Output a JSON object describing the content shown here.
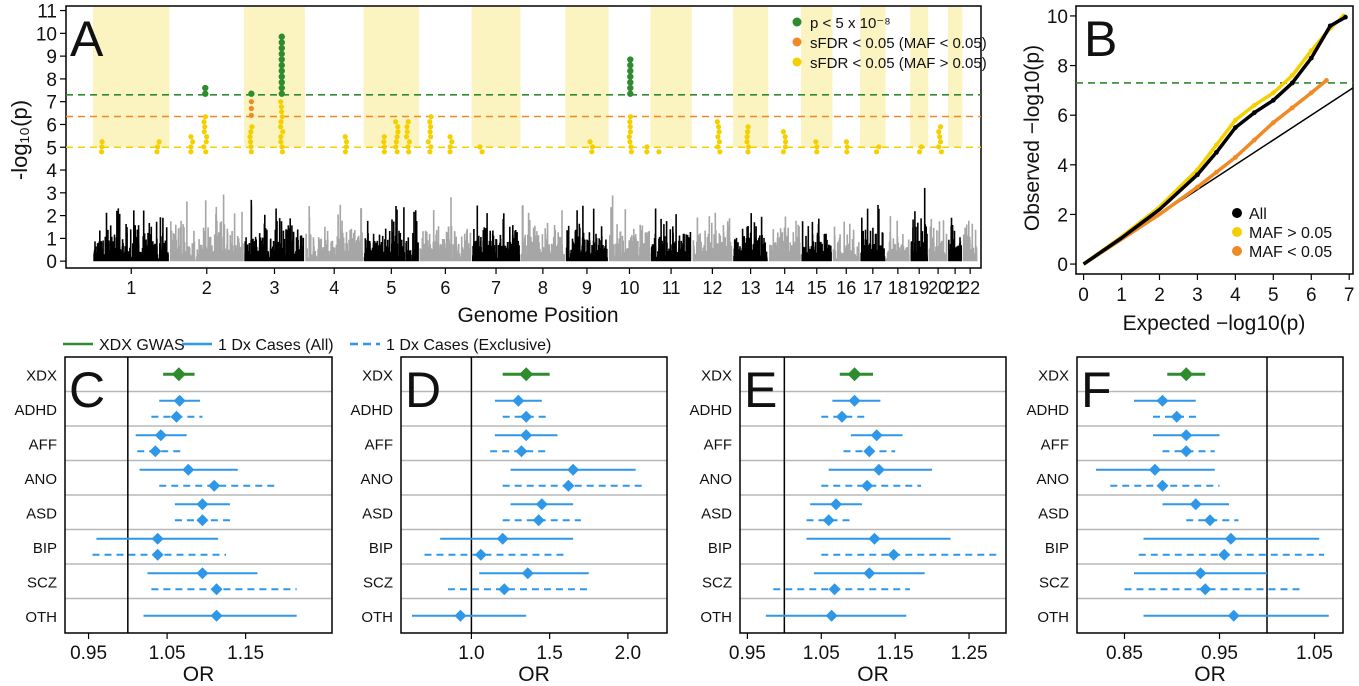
{
  "panels": {
    "a": {
      "letter": "A",
      "ylabel": "-log₁₀(p)",
      "xlabel": "Genome Position",
      "ylim": [
        -0.3,
        11.2
      ],
      "yticks": [
        "0",
        "1",
        "2",
        "3",
        "4",
        "5",
        "6",
        "7",
        "8",
        "9",
        "10",
        "11"
      ],
      "chromosomes": [
        "1",
        "2",
        "3",
        "4",
        "5",
        "6",
        "7",
        "8",
        "9",
        "10",
        "11",
        "12",
        "13",
        "14",
        "15",
        "16",
        "17",
        "18",
        "19",
        "20",
        "21",
        "22"
      ],
      "thresholds": [
        {
          "value": 7.3,
          "color": "#2e8b2e"
        },
        {
          "value": 6.35,
          "color": "#f08a24"
        },
        {
          "value": 5.0,
          "color": "#f5d000"
        }
      ],
      "legend": [
        {
          "label": "p < 5 x 10⁻⁸",
          "color": "#2e8b2e"
        },
        {
          "label": "sFDR < 0.05 (MAF < 0.05)",
          "color": "#f08a24"
        },
        {
          "label": "sFDR < 0.05 (MAF > 0.05)",
          "color": "#f5d000"
        }
      ],
      "colors": {
        "odd": "#000000",
        "even": "#a6a6a6",
        "shade": "#fbf3c0"
      },
      "peaks": [
        {
          "chrom": "2",
          "pos": 0.48,
          "max": 7.6
        },
        {
          "chrom": "3",
          "pos": 0.12,
          "max": 7.4
        },
        {
          "chrom": "3",
          "pos": 0.62,
          "max": 10.0
        },
        {
          "chrom": "10",
          "pos": 0.52,
          "max": 8.9
        }
      ]
    },
    "b": {
      "letter": "B",
      "xlabel": "Expected −log10(p)",
      "ylabel": "Observed −log10(p)",
      "xlim": [
        -0.2,
        7.1
      ],
      "ylim": [
        -0.4,
        10.4
      ],
      "xticks": [
        "0",
        "1",
        "2",
        "3",
        "4",
        "5",
        "6",
        "7"
      ],
      "yticks": [
        "0",
        "2",
        "4",
        "6",
        "8",
        "10"
      ],
      "gwas_line": 7.3,
      "legend": [
        {
          "label": "All",
          "color": "#000000"
        },
        {
          "label": "MAF > 0.05",
          "color": "#f5d000"
        },
        {
          "label": "MAF < 0.05",
          "color": "#f08a24"
        }
      ],
      "series": [
        {
          "name": "All",
          "color": "#000000",
          "x": [
            0,
            1,
            2,
            3,
            3.5,
            4,
            4.5,
            5,
            5.5,
            6,
            6.5,
            6.9
          ],
          "y": [
            0,
            1.05,
            2.2,
            3.6,
            4.5,
            5.5,
            6.1,
            6.6,
            7.3,
            8.3,
            9.6,
            9.95
          ]
        },
        {
          "name": "MAF > 0.05",
          "color": "#f5d000",
          "x": [
            0,
            1,
            2,
            3,
            3.5,
            4,
            4.5,
            5,
            5.5,
            6,
            6.5,
            6.85
          ],
          "y": [
            0,
            1.1,
            2.3,
            3.8,
            4.8,
            5.8,
            6.4,
            6.9,
            7.6,
            8.6,
            9.5,
            10.0
          ]
        },
        {
          "name": "MAF < 0.05",
          "color": "#f08a24",
          "x": [
            0,
            1,
            2,
            3,
            3.5,
            4,
            4.5,
            5,
            5.5,
            6,
            6.4
          ],
          "y": [
            0,
            1.0,
            2.0,
            3.1,
            3.7,
            4.3,
            5.0,
            5.7,
            6.3,
            6.9,
            7.4
          ]
        }
      ]
    },
    "forest_legend": [
      {
        "label": "XDX GWAS",
        "color": "#2e8b2e",
        "dash": false
      },
      {
        "label": "1 Dx Cases (All)",
        "color": "#2f97e8",
        "dash": false
      },
      {
        "label": "1 Dx Cases (Exclusive)",
        "color": "#2f97e8",
        "dash": true
      }
    ],
    "forest": [
      {
        "letter": "C",
        "xlabel": "OR",
        "xlim": [
          0.92,
          1.26
        ],
        "ref": 1.0,
        "xticks": [
          {
            "v": 0.95,
            "label": "0.95"
          },
          {
            "v": 1.05,
            "label": "1.05"
          },
          {
            "v": 1.15,
            "label": "1.15"
          }
        ],
        "rows": [
          {
            "label": "XDX",
            "xdx": [
              1.065,
              1.045,
              1.085
            ]
          },
          {
            "label": "ADHD",
            "all": [
              1.066,
              1.04,
              1.092
            ],
            "excl": [
              1.062,
              1.03,
              1.095
            ]
          },
          {
            "label": "AFF",
            "all": [
              1.042,
              1.01,
              1.075
            ],
            "excl": [
              1.035,
              1.012,
              1.07
            ]
          },
          {
            "label": "ANO",
            "all": [
              1.077,
              1.015,
              1.14
            ],
            "excl": [
              1.11,
              1.04,
              1.19
            ]
          },
          {
            "label": "ASD",
            "all": [
              1.095,
              1.06,
              1.13
            ],
            "excl": [
              1.095,
              1.06,
              1.135
            ]
          },
          {
            "label": "BIP",
            "all": [
              1.038,
              0.96,
              1.115
            ],
            "excl": [
              1.038,
              0.955,
              1.125
            ]
          },
          {
            "label": "SCZ",
            "all": [
              1.095,
              1.025,
              1.165
            ],
            "excl": [
              1.113,
              1.03,
              1.215
            ]
          },
          {
            "label": "OTH",
            "all": [
              1.113,
              1.02,
              1.215
            ]
          }
        ]
      },
      {
        "letter": "D",
        "xlabel": "OR",
        "xlim": [
          0.55,
          2.25
        ],
        "ref": 1.0,
        "xticks": [
          {
            "v": 1.0,
            "label": "1.0"
          },
          {
            "v": 1.5,
            "label": "1.5"
          },
          {
            "v": 2.0,
            "label": "2.0"
          }
        ],
        "rows": [
          {
            "label": "XDX",
            "xdx": [
              1.35,
              1.2,
              1.5
            ]
          },
          {
            "label": "ADHD",
            "all": [
              1.3,
              1.15,
              1.45
            ],
            "excl": [
              1.35,
              1.2,
              1.5
            ]
          },
          {
            "label": "AFF",
            "all": [
              1.35,
              1.15,
              1.55
            ],
            "excl": [
              1.32,
              1.12,
              1.5
            ]
          },
          {
            "label": "ANO",
            "all": [
              1.65,
              1.25,
              2.05
            ],
            "excl": [
              1.62,
              1.2,
              2.1
            ]
          },
          {
            "label": "ASD",
            "all": [
              1.45,
              1.25,
              1.65
            ],
            "excl": [
              1.43,
              1.2,
              1.7
            ]
          },
          {
            "label": "BIP",
            "all": [
              1.2,
              0.8,
              1.65
            ],
            "excl": [
              1.06,
              0.7,
              1.6
            ]
          },
          {
            "label": "SCZ",
            "all": [
              1.36,
              1.05,
              1.75
            ],
            "excl": [
              1.21,
              0.85,
              1.75
            ]
          },
          {
            "label": "OTH",
            "all": [
              0.93,
              0.62,
              1.35
            ]
          }
        ]
      },
      {
        "letter": "E",
        "xlabel": "OR",
        "xlim": [
          0.94,
          1.3
        ],
        "ref": 1.0,
        "xticks": [
          {
            "v": 0.95,
            "label": "0.95"
          },
          {
            "v": 1.05,
            "label": "1.05"
          },
          {
            "v": 1.15,
            "label": "1.15"
          },
          {
            "v": 1.25,
            "label": "1.25"
          }
        ],
        "rows": [
          {
            "label": "XDX",
            "xdx": [
              1.095,
              1.075,
              1.12
            ]
          },
          {
            "label": "ADHD",
            "all": [
              1.095,
              1.065,
              1.13
            ],
            "excl": [
              1.078,
              1.05,
              1.11
            ]
          },
          {
            "label": "AFF",
            "all": [
              1.125,
              1.09,
              1.16
            ],
            "excl": [
              1.115,
              1.08,
              1.15
            ]
          },
          {
            "label": "ANO",
            "all": [
              1.128,
              1.06,
              1.2
            ],
            "excl": [
              1.112,
              1.05,
              1.185
            ]
          },
          {
            "label": "ASD",
            "all": [
              1.07,
              1.035,
              1.105
            ],
            "excl": [
              1.06,
              1.03,
              1.09
            ]
          },
          {
            "label": "BIP",
            "all": [
              1.122,
              1.03,
              1.225
            ],
            "excl": [
              1.148,
              1.05,
              1.29
            ]
          },
          {
            "label": "SCZ",
            "all": [
              1.115,
              1.04,
              1.19
            ],
            "excl": [
              1.068,
              0.985,
              1.17
            ]
          },
          {
            "label": "OTH",
            "all": [
              1.064,
              0.975,
              1.165
            ]
          }
        ]
      },
      {
        "letter": "F",
        "xlabel": "OR",
        "xlim": [
          0.8,
          1.08
        ],
        "ref": 1.0,
        "xticks": [
          {
            "v": 0.85,
            "label": "0.85"
          },
          {
            "v": 0.95,
            "label": "0.95"
          },
          {
            "v": 1.05,
            "label": "1.05"
          }
        ],
        "rows": [
          {
            "label": "XDX",
            "xdx": [
              0.915,
              0.895,
              0.935
            ]
          },
          {
            "label": "ADHD",
            "all": [
              0.89,
              0.86,
              0.925
            ],
            "excl": [
              0.905,
              0.88,
              0.93
            ]
          },
          {
            "label": "AFF",
            "all": [
              0.915,
              0.88,
              0.95
            ],
            "excl": [
              0.915,
              0.89,
              0.945
            ]
          },
          {
            "label": "ANO",
            "all": [
              0.882,
              0.82,
              0.945
            ],
            "excl": [
              0.89,
              0.835,
              0.95
            ]
          },
          {
            "label": "ASD",
            "all": [
              0.925,
              0.89,
              0.96
            ],
            "excl": [
              0.94,
              0.915,
              0.97
            ]
          },
          {
            "label": "BIP",
            "all": [
              0.962,
              0.87,
              1.055
            ],
            "excl": [
              0.955,
              0.865,
              1.06
            ]
          },
          {
            "label": "SCZ",
            "all": [
              0.93,
              0.86,
              1.0
            ],
            "excl": [
              0.935,
              0.85,
              1.035
            ]
          },
          {
            "label": "OTH",
            "all": [
              0.965,
              0.87,
              1.065
            ]
          }
        ]
      }
    ]
  }
}
